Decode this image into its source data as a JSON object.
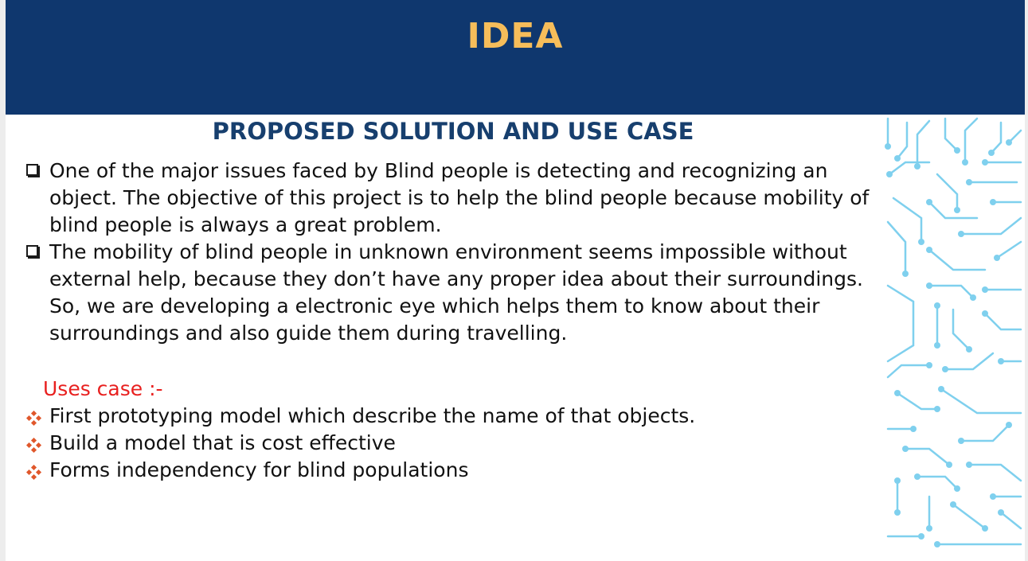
{
  "header": {
    "title": "IDEA"
  },
  "subtitle": "PROPOSED SOLUTION AND USE CASE",
  "bullets": [
    {
      "icon": "square-bullet-icon",
      "text": "One of the major issues faced by Blind people is detecting and recognizing an object. The objective of this project is to help the blind people because mobility of blind people is always a great problem."
    },
    {
      "icon": "square-bullet-icon",
      "text": "The mobility of blind people in unknown environment seems impossible without external help, because they don’t have any proper idea about their surroundings. So, we are developing a electronic eye which helps them to know about their surroundings and also guide them during travelling."
    }
  ],
  "use_case": {
    "label": "Uses case :-",
    "items": [
      {
        "icon": "diamond-bullet-icon",
        "text": "First prototyping model which describe the name of that objects."
      },
      {
        "icon": "diamond-bullet-icon",
        "text": "Build a model that is cost effective"
      },
      {
        "icon": "diamond-bullet-icon",
        "text": "Forms independency for blind populations"
      }
    ]
  },
  "colors": {
    "header_bg": "#0f376e",
    "title": "#f6bd5a",
    "subtitle": "#173f6e",
    "use_case_label": "#e8201f",
    "diamond_bullet": "#e0572b",
    "circuit": "#7fd0ee"
  },
  "decoration": {
    "icon": "circuit-board-pattern"
  }
}
